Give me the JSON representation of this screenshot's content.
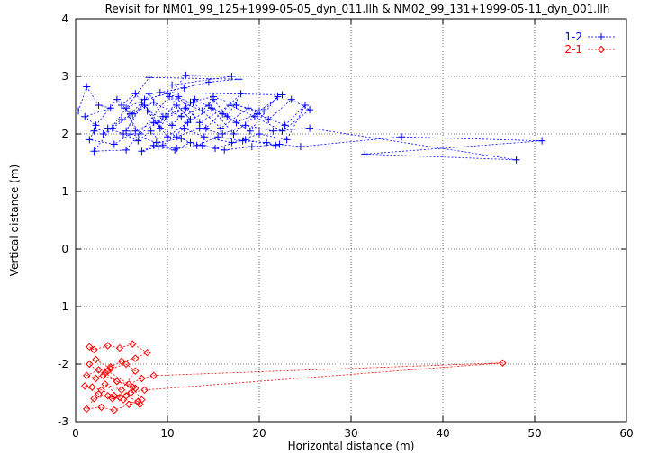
{
  "chart_data": {
    "type": "scatter",
    "title": "Revisit for NM01_99_125+1999-05-05_dyn_011.llh & NM02_99_131+1999-05-11_dyn_001.llh",
    "xlabel": "Horizontal distance (m)",
    "ylabel": "Vertical distance (m)",
    "xlim": [
      0,
      60
    ],
    "ylim": [
      -3,
      4
    ],
    "xticks": [
      "0",
      "10",
      "20",
      "30",
      "40",
      "50",
      "60"
    ],
    "yticks": [
      "-3",
      "-2",
      "-1",
      "0",
      "1",
      "2",
      "3",
      "4"
    ],
    "grid": true,
    "legend_position": "top-right",
    "series": [
      {
        "name": "1-2",
        "color": "#0000ff",
        "marker": "plus",
        "x": [
          0.3,
          1.2,
          2.5,
          3.8,
          1.0,
          2.2,
          4.5,
          6.0,
          7.2,
          5.5,
          8.0,
          9.5,
          11.0,
          12.5,
          10.2,
          13.8,
          15.0,
          16.5,
          18.0,
          14.2,
          12.0,
          9.0,
          7.5,
          6.2,
          4.0,
          3.0,
          5.0,
          8.5,
          11.5,
          14.5,
          17.5,
          20.5,
          22.0,
          19.0,
          16.0,
          13.0,
          10.5,
          8.0,
          6.5,
          5.0,
          7.0,
          9.8,
          12.8,
          15.8,
          18.8,
          21.0,
          23.5,
          25.5,
          22.5,
          19.5,
          16.8,
          13.5,
          11.2,
          9.2,
          7.8,
          10.0,
          12.2,
          14.8,
          17.2,
          19.8,
          22.8,
          25.0,
          23.0,
          20.0,
          17.0,
          14.0,
          11.8,
          9.5,
          8.2,
          6.8,
          5.2,
          3.5,
          2.0,
          1.5,
          4.2,
          6.0,
          8.8,
          11.5,
          13.2,
          15.5,
          18.2,
          20.8,
          21.8,
          18.5,
          15.2,
          12.5,
          10.8,
          8.5,
          7.2,
          9.0,
          11.0,
          13.8,
          16.2,
          19.2,
          22.2,
          24.5,
          35.5,
          50.8,
          31.5,
          48.0,
          25.5,
          21.5,
          18.5,
          16.0,
          13.5,
          11.0,
          8.5,
          6.5,
          5.5,
          7.5,
          10.0,
          12.5,
          15.0,
          17.5,
          20.0,
          22.5,
          9.2,
          11.8,
          14.5,
          17.8,
          8.0,
          2.0,
          5.5,
          12.0,
          17.0,
          10.5
        ],
        "y": [
          2.4,
          2.82,
          2.5,
          2.45,
          2.3,
          2.15,
          2.6,
          2.35,
          2.55,
          2.05,
          2.7,
          2.3,
          2.5,
          2.25,
          2.65,
          2.4,
          2.6,
          2.3,
          2.7,
          2.1,
          2.45,
          2.2,
          2.5,
          2.35,
          2.1,
          2.0,
          2.25,
          2.55,
          2.3,
          2.5,
          2.2,
          2.4,
          2.65,
          2.05,
          2.35,
          2.6,
          2.15,
          2.4,
          2.7,
          2.5,
          2.0,
          2.3,
          2.55,
          2.1,
          2.45,
          2.25,
          2.6,
          2.42,
          2.05,
          2.3,
          2.5,
          2.2,
          2.65,
          2.1,
          2.4,
          1.95,
          2.2,
          2.45,
          2.0,
          2.35,
          2.15,
          2.5,
          1.9,
          2.0,
          1.85,
          1.95,
          2.1,
          1.8,
          2.05,
          1.88,
          2.0,
          2.1,
          2.05,
          1.9,
          1.82,
          2.0,
          1.85,
          1.92,
          1.8,
          1.95,
          1.88,
          1.85,
          1.8,
          1.9,
          1.75,
          1.85,
          1.72,
          1.8,
          1.7,
          1.78,
          1.75,
          1.8,
          1.72,
          1.78,
          1.82,
          1.78,
          1.95,
          1.88,
          1.65,
          1.55,
          2.1,
          2.05,
          2.15,
          2.0,
          2.1,
          1.95,
          2.2,
          2.05,
          2.45,
          2.6,
          2.7,
          2.55,
          2.65,
          2.5,
          2.4,
          2.68,
          2.72,
          2.8,
          2.9,
          2.95,
          2.98,
          1.7,
          1.72,
          3.02,
          3.0,
          2.85
        ],
        "line_order": [
          0,
          1,
          2,
          3,
          4,
          5,
          6,
          7,
          8,
          9,
          10,
          11,
          12,
          13,
          14,
          15,
          16,
          17,
          18,
          19,
          20,
          21,
          22,
          23,
          24,
          25,
          26,
          27,
          28,
          29,
          30,
          31,
          32,
          33,
          34,
          35,
          36,
          37,
          38,
          39,
          40,
          41,
          42,
          43,
          44,
          45,
          46,
          47,
          48,
          49,
          50,
          51,
          52,
          53,
          54,
          55,
          56,
          57,
          58,
          59,
          60,
          61,
          62,
          63,
          64,
          65,
          66,
          67,
          68,
          69,
          70,
          71,
          72,
          73,
          74,
          75,
          76,
          77,
          78,
          79,
          80,
          81,
          82,
          83,
          84,
          85,
          86,
          87,
          88,
          89,
          90,
          91,
          92,
          93,
          94,
          95,
          96,
          97,
          98,
          99,
          100,
          101,
          102,
          103,
          104,
          105,
          106,
          107,
          108,
          109,
          110,
          111,
          112,
          113,
          114,
          115,
          116,
          117,
          118,
          119,
          120,
          121,
          122,
          123,
          124,
          125
        ]
      },
      {
        "name": "2-1",
        "color": "#ff0000",
        "marker": "diamond",
        "x": [
          1.5,
          2.0,
          3.5,
          4.8,
          6.2,
          7.8,
          6.5,
          5.0,
          3.8,
          2.5,
          1.2,
          2.2,
          3.2,
          4.5,
          5.8,
          7.2,
          8.5,
          7.5,
          6.0,
          4.2,
          2.8,
          1.8,
          1.0,
          2.5,
          4.0,
          5.5,
          6.8,
          7.0,
          5.2,
          3.5,
          2.0,
          1.2,
          2.8,
          4.2,
          5.8,
          7.2,
          6.2,
          4.5,
          3.0,
          1.5,
          2.2,
          3.8,
          5.5,
          6.5,
          46.5,
          5.0,
          3.2,
          4.8,
          6.5,
          3.5
        ],
        "y": [
          -1.7,
          -1.75,
          -1.68,
          -1.72,
          -1.65,
          -1.8,
          -1.9,
          -1.95,
          -2.05,
          -2.1,
          -2.2,
          -2.25,
          -2.15,
          -2.3,
          -2.35,
          -2.25,
          -2.2,
          -2.45,
          -2.5,
          -2.55,
          -2.45,
          -2.4,
          -2.38,
          -2.52,
          -2.6,
          -2.55,
          -2.65,
          -2.7,
          -2.62,
          -2.55,
          -2.6,
          -2.78,
          -2.75,
          -2.8,
          -2.7,
          -2.62,
          -2.4,
          -2.3,
          -2.2,
          -2.0,
          -1.92,
          -2.08,
          -2.0,
          -2.12,
          -1.98,
          -2.45,
          -2.35,
          -2.58,
          -2.42,
          -2.12
        ],
        "line_order": [
          0,
          1,
          2,
          3,
          4,
          5,
          6,
          7,
          8,
          9,
          10,
          11,
          12,
          13,
          14,
          15,
          16,
          44,
          17,
          18,
          19,
          20,
          21,
          22,
          23,
          24,
          25,
          26,
          27,
          28,
          29,
          30,
          31,
          32,
          33,
          34,
          35,
          36,
          37,
          38,
          39,
          40,
          41,
          42,
          43,
          45,
          46,
          47,
          48,
          49
        ]
      }
    ]
  }
}
